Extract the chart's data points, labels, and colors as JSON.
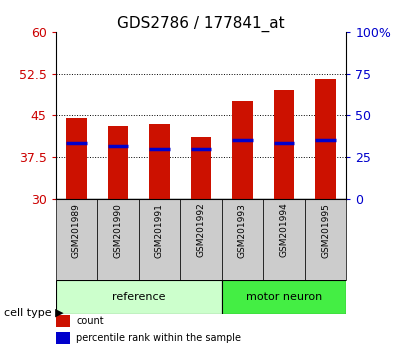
{
  "title": "GDS2786 / 177841_at",
  "samples": [
    "GSM201989",
    "GSM201990",
    "GSM201991",
    "GSM201992",
    "GSM201993",
    "GSM201994",
    "GSM201995"
  ],
  "bar_heights": [
    44.5,
    43.0,
    43.5,
    41.0,
    47.5,
    49.5,
    51.5
  ],
  "blue_markers": [
    40.0,
    39.5,
    39.0,
    39.0,
    40.5,
    40.0,
    40.5
  ],
  "bar_bottom": 30,
  "ylim_left": [
    30,
    60
  ],
  "ylim_right": [
    0,
    100
  ],
  "yticks_left": [
    30,
    37.5,
    45,
    52.5,
    60
  ],
  "yticks_right": [
    0,
    25,
    50,
    75,
    100
  ],
  "ytick_labels_left": [
    "30",
    "37.5",
    "45",
    "52.5",
    "60"
  ],
  "ytick_labels_right": [
    "0",
    "25",
    "50",
    "75",
    "100%"
  ],
  "bar_color": "#cc1100",
  "blue_color": "#0000cc",
  "ref_color": "#ccffcc",
  "motor_color": "#44ee44",
  "gray_box_color": "#cccccc",
  "cell_type_label": "cell type",
  "ref_label": "reference",
  "motor_label": "motor neuron",
  "legend_count_label": "count",
  "legend_pct_label": "percentile rank within the sample",
  "bg_color": "#ffffff",
  "bar_width": 0.5,
  "title_fontsize": 11,
  "tick_fontsize": 9,
  "sample_fontsize": 6.5,
  "group_fontsize": 8,
  "legend_fontsize": 7,
  "cell_type_fontsize": 8
}
